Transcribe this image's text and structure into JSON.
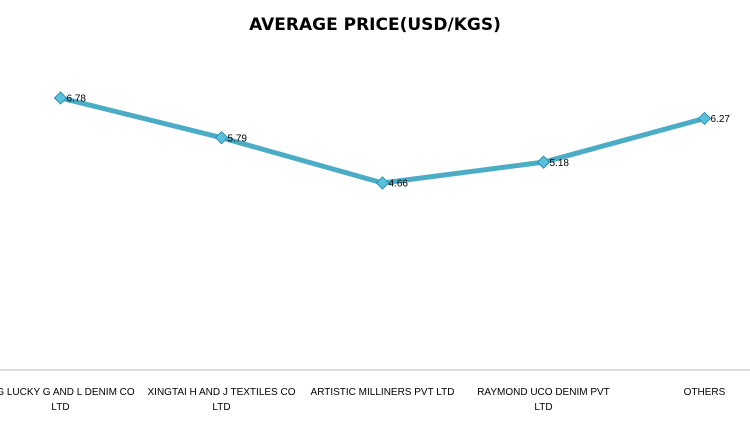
{
  "chart_data": {
    "type": "line",
    "title": "AVERAGE PRICE(USD/KGS)",
    "categories": [
      "ING LUCKY G AND L DENIM CO LTD",
      "XINGTAI H AND J TEXTILES CO LTD",
      "ARTISTIC MILLINERS PVT LTD",
      "RAYMOND UCO DENIM PVT LTD",
      "OTHERS"
    ],
    "series": [
      {
        "color": "#4bacc6",
        "values": [
          6.78,
          5.79,
          4.66,
          5.18,
          6.27
        ]
      }
    ],
    "ylim": [
      0,
      8
    ],
    "grid": false
  }
}
